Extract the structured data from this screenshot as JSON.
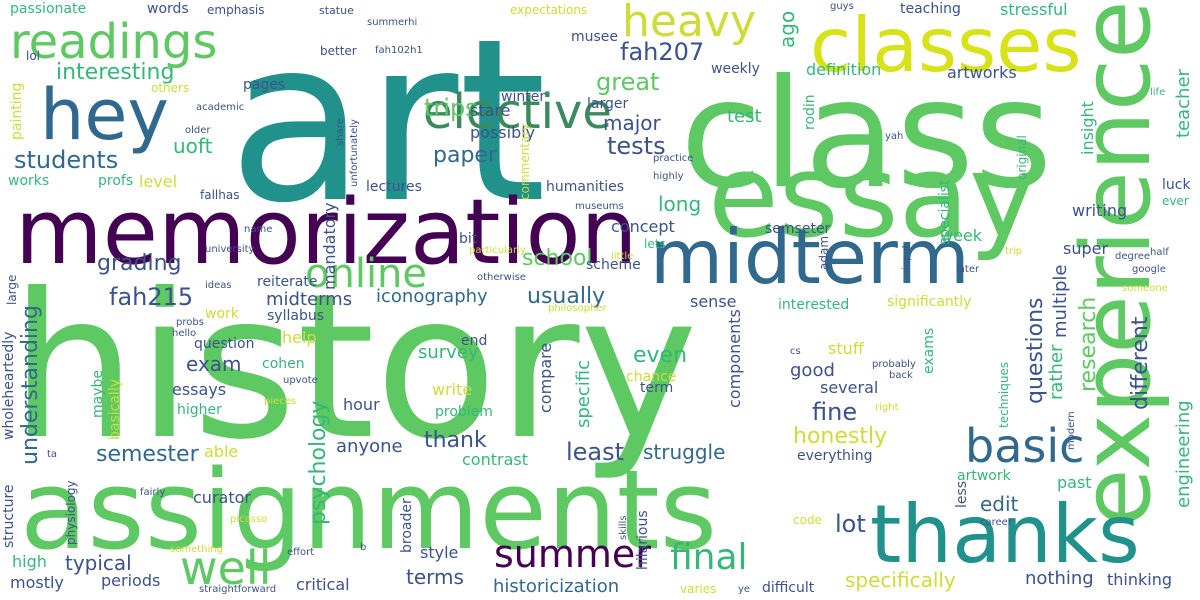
{
  "words": [
    {
      "text": "history",
      "color": "#5ec962"
    },
    {
      "text": "art",
      "color": "#21918c"
    },
    {
      "text": "class",
      "color": "#5ec962"
    },
    {
      "text": "essay",
      "color": "#5ec962"
    },
    {
      "text": "assignments",
      "color": "#5ec962"
    },
    {
      "text": "memorization",
      "color": "#440154"
    },
    {
      "text": "experience",
      "color": "#5ec962"
    },
    {
      "text": "classes",
      "color": "#d8e219"
    },
    {
      "text": "thanks",
      "color": "#21918c"
    },
    {
      "text": "midterm",
      "color": "#31688e"
    },
    {
      "text": "hey",
      "color": "#31688e"
    },
    {
      "text": "readings",
      "color": "#5ec962"
    },
    {
      "text": "elective",
      "color": "#3b8a5f"
    },
    {
      "text": "heavy",
      "color": "#cddc39"
    },
    {
      "text": "online",
      "color": "#5ec962"
    },
    {
      "text": "basic",
      "color": "#31688e"
    },
    {
      "text": "final",
      "color": "#35b779"
    },
    {
      "text": "well",
      "color": "#5ec962"
    },
    {
      "text": "summer",
      "color": "#440154"
    },
    {
      "text": "interesting",
      "color": "#35b779"
    },
    {
      "text": "students",
      "color": "#31688e"
    },
    {
      "text": "uoft",
      "color": "#35b779"
    },
    {
      "text": "paper",
      "color": "#31688e"
    },
    {
      "text": "tests",
      "color": "#3b528b"
    },
    {
      "text": "trips",
      "color": "#5ec962"
    },
    {
      "text": "great",
      "color": "#5ec962"
    },
    {
      "text": "major",
      "color": "#3b528b"
    },
    {
      "text": "fah207",
      "color": "#3b528b"
    },
    {
      "text": "fah215",
      "color": "#3b528b"
    },
    {
      "text": "grading",
      "color": "#3b528b"
    },
    {
      "text": "school",
      "color": "#5ec962"
    },
    {
      "text": "usually",
      "color": "#31688e"
    },
    {
      "text": "iconography",
      "color": "#31688e"
    },
    {
      "text": "midterms",
      "color": "#3b528b"
    },
    {
      "text": "understanding",
      "color": "#31688e"
    },
    {
      "text": "psychology",
      "color": "#35b779"
    },
    {
      "text": "semester",
      "color": "#31688e"
    },
    {
      "text": "exam",
      "color": "#3b528b"
    },
    {
      "text": "honestly",
      "color": "#cddc39"
    },
    {
      "text": "fine",
      "color": "#3b528b"
    },
    {
      "text": "least",
      "color": "#3b528b"
    },
    {
      "text": "struggle",
      "color": "#31688e"
    },
    {
      "text": "thank",
      "color": "#3b528b"
    },
    {
      "text": "anyone",
      "color": "#3b528b"
    },
    {
      "text": "typical",
      "color": "#3b528b"
    },
    {
      "text": "terms",
      "color": "#3b528b"
    },
    {
      "text": "historicization",
      "color": "#31688e"
    },
    {
      "text": "specifically",
      "color": "#cddc39"
    },
    {
      "text": "nothing",
      "color": "#3b528b"
    },
    {
      "text": "thinking",
      "color": "#3b528b"
    },
    {
      "text": "lot",
      "color": "#3b528b"
    },
    {
      "text": "edit",
      "color": "#31688e"
    },
    {
      "text": "research",
      "color": "#5ec962"
    },
    {
      "text": "different",
      "color": "#3b528b"
    },
    {
      "text": "questions",
      "color": "#3b528b"
    },
    {
      "text": "rather",
      "color": "#35b779"
    },
    {
      "text": "multiple",
      "color": "#3b528b"
    },
    {
      "text": "engineering",
      "color": "#35b779"
    },
    {
      "text": "teacher",
      "color": "#35b779"
    },
    {
      "text": "insight",
      "color": "#35b779"
    },
    {
      "text": "definition",
      "color": "#35b779"
    },
    {
      "text": "artworks",
      "color": "#3b528b"
    },
    {
      "text": "test",
      "color": "#35b779"
    },
    {
      "text": "weekly",
      "color": "#3b528b"
    },
    {
      "text": "ago",
      "color": "#35b779"
    },
    {
      "text": "stare",
      "color": "#3b528b"
    },
    {
      "text": "possibly",
      "color": "#3b528b"
    },
    {
      "text": "winter",
      "color": "#3b528b"
    },
    {
      "text": "larger",
      "color": "#3b528b"
    },
    {
      "text": "musee",
      "color": "#3b528b"
    },
    {
      "text": "rodin",
      "color": "#35b779"
    },
    {
      "text": "writing",
      "color": "#3b528b"
    },
    {
      "text": "week",
      "color": "#35b779"
    },
    {
      "text": "concept",
      "color": "#3b528b"
    },
    {
      "text": "lets",
      "color": "#35b779"
    },
    {
      "text": "semseter",
      "color": "#3b528b"
    },
    {
      "text": "scheme",
      "color": "#3b528b"
    },
    {
      "text": "sense",
      "color": "#3b528b"
    },
    {
      "text": "interested",
      "color": "#35b779"
    },
    {
      "text": "significantly",
      "color": "#cddc39"
    },
    {
      "text": "super",
      "color": "#3b528b"
    },
    {
      "text": "reiterate",
      "color": "#3b528b"
    },
    {
      "text": "syllabus",
      "color": "#3b528b"
    },
    {
      "text": "help",
      "color": "#cddc39"
    },
    {
      "text": "question",
      "color": "#3b528b"
    },
    {
      "text": "end",
      "color": "#3b528b"
    },
    {
      "text": "cohen",
      "color": "#35b779"
    },
    {
      "text": "survey",
      "color": "#35b779"
    },
    {
      "text": "even",
      "color": "#35b779"
    },
    {
      "text": "specific",
      "color": "#35b779"
    },
    {
      "text": "compare",
      "color": "#3b528b"
    },
    {
      "text": "components",
      "color": "#3b528b"
    },
    {
      "text": "stuff",
      "color": "#cddc39"
    },
    {
      "text": "good",
      "color": "#3b528b"
    },
    {
      "text": "several",
      "color": "#3b528b"
    },
    {
      "text": "exams",
      "color": "#35b779"
    },
    {
      "text": "techniques",
      "color": "#35b779"
    },
    {
      "text": "hour",
      "color": "#3b528b"
    },
    {
      "text": "essays",
      "color": "#3b528b"
    },
    {
      "text": "write",
      "color": "#cddc39"
    },
    {
      "text": "higher",
      "color": "#35b779"
    },
    {
      "text": "problem",
      "color": "#35b779"
    },
    {
      "text": "maybe",
      "color": "#35b779"
    },
    {
      "text": "basically",
      "color": "#cddc39"
    },
    {
      "text": "able",
      "color": "#cddc39"
    },
    {
      "text": "contrast",
      "color": "#35b779"
    },
    {
      "text": "everything",
      "color": "#3b528b"
    },
    {
      "text": "artwork",
      "color": "#35b779"
    },
    {
      "text": "past",
      "color": "#35b779"
    },
    {
      "text": "curator",
      "color": "#3b528b"
    },
    {
      "text": "style",
      "color": "#3b528b"
    },
    {
      "text": "code",
      "color": "#cddc39"
    },
    {
      "text": "high",
      "color": "#35b779"
    },
    {
      "text": "periods",
      "color": "#3b528b"
    },
    {
      "text": "mostly",
      "color": "#3b528b"
    },
    {
      "text": "critical",
      "color": "#3b528b"
    },
    {
      "text": "difficult",
      "color": "#3b528b"
    },
    {
      "text": "varies",
      "color": "#cddc39"
    },
    {
      "text": "structure",
      "color": "#3b528b"
    },
    {
      "text": "physiology",
      "color": "#3b528b"
    },
    {
      "text": "wholeheartedly",
      "color": "#3b528b"
    },
    {
      "text": "mandatory",
      "color": "#3b528b"
    },
    {
      "text": "level",
      "color": "#cddc39"
    },
    {
      "text": "profs",
      "color": "#35b779"
    },
    {
      "text": "works",
      "color": "#35b779"
    },
    {
      "text": "lectures",
      "color": "#3b528b"
    },
    {
      "text": "humanities",
      "color": "#3b528b"
    },
    {
      "text": "long",
      "color": "#35b779"
    },
    {
      "text": "bit",
      "color": "#3b528b"
    },
    {
      "text": "passionate",
      "color": "#35b779"
    },
    {
      "text": "words",
      "color": "#3b528b"
    },
    {
      "text": "emphasis",
      "color": "#3b528b"
    },
    {
      "text": "expectations",
      "color": "#cddc39"
    },
    {
      "text": "teaching",
      "color": "#3b528b"
    },
    {
      "text": "stressful",
      "color": "#35b779"
    },
    {
      "text": "better",
      "color": "#3b528b"
    },
    {
      "text": "pages",
      "color": "#3b528b"
    },
    {
      "text": "others",
      "color": "#cddc39"
    },
    {
      "text": "lol",
      "color": "#3b528b"
    },
    {
      "text": "painting",
      "color": "#cddc39"
    },
    {
      "text": "fallhas",
      "color": "#3b528b"
    },
    {
      "text": "work",
      "color": "#cddc39"
    },
    {
      "text": "ideas",
      "color": "#3b528b"
    },
    {
      "text": "large",
      "color": "#3b528b"
    },
    {
      "text": "commentary",
      "color": "#cddc39"
    },
    {
      "text": "statue",
      "color": "#3b528b"
    },
    {
      "text": "summerhi",
      "color": "#3b528b"
    },
    {
      "text": "fah102h1",
      "color": "#3b528b"
    },
    {
      "text": "academic",
      "color": "#3b528b"
    },
    {
      "text": "older",
      "color": "#3b528b"
    },
    {
      "text": "share",
      "color": "#3b528b"
    },
    {
      "text": "unfortunately",
      "color": "#3b528b"
    },
    {
      "text": "highly",
      "color": "#3b528b"
    },
    {
      "text": "museums",
      "color": "#3b528b"
    },
    {
      "text": "practice",
      "color": "#3b528b"
    },
    {
      "text": "guys",
      "color": "#3b528b"
    },
    {
      "text": "life",
      "color": "#35b779"
    },
    {
      "text": "yah",
      "color": "#3b528b"
    },
    {
      "text": "original",
      "color": "#35b779"
    },
    {
      "text": "specialist",
      "color": "#35b779"
    },
    {
      "text": "adam",
      "color": "#3b528b"
    },
    {
      "text": "luck",
      "color": "#3b528b"
    },
    {
      "text": "ever",
      "color": "#35b779"
    },
    {
      "text": "trip",
      "color": "#cddc39"
    },
    {
      "text": "later",
      "color": "#3b528b"
    },
    {
      "text": "input",
      "color": "#3b528b"
    },
    {
      "text": "degree",
      "color": "#3b528b"
    },
    {
      "text": "half",
      "color": "#3b528b"
    },
    {
      "text": "google",
      "color": "#3b528b"
    },
    {
      "text": "someone",
      "color": "#cddc39"
    },
    {
      "text": "particularly",
      "color": "#cddc39"
    },
    {
      "text": "little",
      "color": "#cddc39"
    },
    {
      "text": "otherwise",
      "color": "#3b528b"
    },
    {
      "text": "philosopher",
      "color": "#cddc39"
    },
    {
      "text": "probs",
      "color": "#3b528b"
    },
    {
      "text": "hello",
      "color": "#3b528b"
    },
    {
      "text": "name",
      "color": "#3b528b"
    },
    {
      "text": "university",
      "color": "#3b528b"
    },
    {
      "text": "upvote",
      "color": "#3b528b"
    },
    {
      "text": "pieces",
      "color": "#cddc39"
    },
    {
      "text": "chance",
      "color": "#cddc39"
    },
    {
      "text": "term",
      "color": "#3b528b"
    },
    {
      "text": "probably",
      "color": "#3b528b"
    },
    {
      "text": "back",
      "color": "#3b528b"
    },
    {
      "text": "right",
      "color": "#cddc39"
    },
    {
      "text": "cs",
      "color": "#3b528b"
    },
    {
      "text": "modern",
      "color": "#3b528b"
    },
    {
      "text": "less",
      "color": "#3b528b"
    },
    {
      "text": "career",
      "color": "#3b528b"
    },
    {
      "text": "skills",
      "color": "#3b528b"
    },
    {
      "text": "ye",
      "color": "#3b528b"
    },
    {
      "text": "hilarious",
      "color": "#3b528b"
    },
    {
      "text": "broader",
      "color": "#3b528b"
    },
    {
      "text": "b",
      "color": "#3b528b"
    },
    {
      "text": "effort",
      "color": "#3b528b"
    },
    {
      "text": "straightforward",
      "color": "#3b528b"
    },
    {
      "text": "something",
      "color": "#cddc39"
    },
    {
      "text": "picasso",
      "color": "#cddc39"
    },
    {
      "text": "fairly",
      "color": "#3b528b"
    },
    {
      "text": "ta",
      "color": "#3b528b"
    }
  ]
}
